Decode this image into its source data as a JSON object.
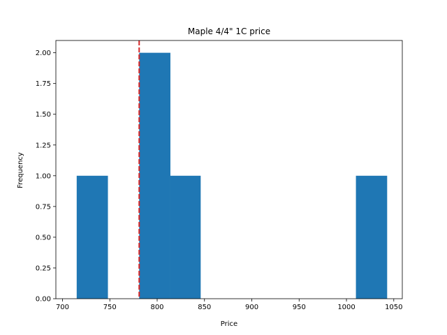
{
  "chart_data": {
    "type": "bar",
    "subtype": "histogram",
    "title": "Maple 4/4\" 1C price",
    "xlabel": "Price",
    "ylabel": "Frequency",
    "xlim": [
      693,
      1059
    ],
    "ylim": [
      0,
      2.1
    ],
    "bins": [
      {
        "x0": 715,
        "x1": 748,
        "count": 1
      },
      {
        "x0": 748,
        "x1": 781,
        "count": 0
      },
      {
        "x0": 781,
        "x1": 814,
        "count": 2
      },
      {
        "x0": 814,
        "x1": 846,
        "count": 1
      },
      {
        "x0": 846,
        "x1": 879,
        "count": 0
      },
      {
        "x0": 879,
        "x1": 912,
        "count": 0
      },
      {
        "x0": 912,
        "x1": 945,
        "count": 0
      },
      {
        "x0": 945,
        "x1": 977,
        "count": 0
      },
      {
        "x0": 977,
        "x1": 1010,
        "count": 0
      },
      {
        "x0": 1010,
        "x1": 1043,
        "count": 1
      }
    ],
    "reference_line": {
      "x": 781,
      "style": "dashed",
      "color": "#d62728"
    },
    "xticks": [
      700,
      750,
      800,
      850,
      900,
      950,
      1000,
      1050
    ],
    "yticks": [
      0,
      0.25,
      0.5,
      0.75,
      1.0,
      1.25,
      1.5,
      1.75,
      2.0
    ],
    "xtick_labels": [
      "700",
      "750",
      "800",
      "850",
      "900",
      "950",
      "1000",
      "1050"
    ],
    "ytick_labels": [
      "0.00",
      "0.25",
      "0.50",
      "0.75",
      "1.00",
      "1.25",
      "1.50",
      "1.75",
      "2.00"
    ],
    "bar_color": "#1f77b4",
    "grid": false,
    "legend": "none"
  }
}
